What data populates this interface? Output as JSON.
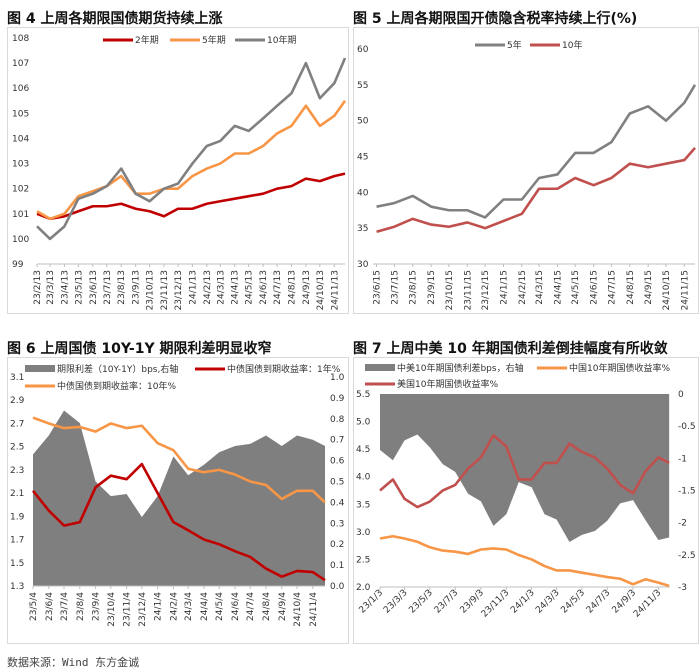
{
  "source": "数据来源：Wind 东方金诚",
  "colors": {
    "red": "#C00000",
    "orange": "#F79646",
    "gray": "#808080",
    "brick": "#C0504D",
    "area": "#7F7F7F"
  },
  "chart_data": [
    {
      "title": "图 4  上周各期限国债期货持续上涨",
      "type": "line",
      "ylim": [
        99,
        108
      ],
      "yticks": [
        99,
        100,
        101,
        102,
        103,
        104,
        105,
        106,
        107,
        108
      ],
      "xticks": [
        "23/2/13",
        "23/3/13",
        "23/4/13",
        "23/5/13",
        "23/6/13",
        "23/7/13",
        "23/8/13",
        "23/9/13",
        "23/10/13",
        "23/11/13",
        "23/12/13",
        "24/1/13",
        "24/2/13",
        "24/3/13",
        "24/4/13",
        "24/5/13",
        "24/6/13",
        "24/7/13",
        "24/8/13",
        "24/9/13",
        "24/10/13",
        "24/11/13"
      ],
      "x": [
        "2023-02-13",
        "2023-03-13",
        "2023-04-13",
        "2023-05-13",
        "2023-06-13",
        "2023-07-13",
        "2023-08-13",
        "2023-09-13",
        "2023-10-13",
        "2023-11-13",
        "2023-12-13",
        "2024-01-13",
        "2024-02-13",
        "2024-03-13",
        "2024-04-13",
        "2024-05-13",
        "2024-06-13",
        "2024-07-13",
        "2024-08-13",
        "2024-09-13",
        "2024-10-13",
        "2024-11-13",
        "2024-12-06"
      ],
      "series": [
        {
          "name": "2年期",
          "color": "#C00000",
          "values": [
            101.0,
            100.8,
            100.9,
            101.1,
            101.3,
            101.3,
            101.4,
            101.2,
            101.1,
            100.9,
            101.2,
            101.2,
            101.4,
            101.5,
            101.6,
            101.7,
            101.8,
            102.0,
            102.1,
            102.4,
            102.3,
            102.5,
            102.6
          ]
        },
        {
          "name": "5年期",
          "color": "#F79646",
          "values": [
            101.1,
            100.8,
            101.0,
            101.7,
            101.9,
            102.1,
            102.5,
            101.8,
            101.8,
            102.0,
            102.0,
            102.5,
            102.8,
            103.0,
            103.4,
            103.4,
            103.7,
            104.2,
            104.5,
            105.3,
            104.5,
            104.9,
            105.5
          ]
        },
        {
          "name": "10年期",
          "color": "#808080",
          "values": [
            100.5,
            100.0,
            100.5,
            101.6,
            101.8,
            102.1,
            102.8,
            101.8,
            101.5,
            102.0,
            102.2,
            103.0,
            103.7,
            103.9,
            104.5,
            104.3,
            104.8,
            105.3,
            105.8,
            107.0,
            105.6,
            106.2,
            107.2
          ]
        }
      ]
    },
    {
      "title": "图 5  上周各期限国开债隐含税率持续上行(%)",
      "type": "line",
      "ylim": [
        30,
        60
      ],
      "yticks": [
        30,
        35,
        40,
        45,
        50,
        55,
        60
      ],
      "xticks": [
        "23/6/15",
        "23/7/15",
        "23/8/15",
        "23/9/15",
        "23/10/15",
        "23/11/15",
        "23/12/15",
        "24/1/15",
        "24/2/15",
        "24/3/15",
        "24/4/15",
        "24/5/15",
        "24/6/15",
        "24/7/15",
        "24/8/15",
        "24/9/15",
        "24/10/15",
        "24/11/15"
      ],
      "x": [
        "2023-06-15",
        "2023-07-15",
        "2023-08-15",
        "2023-09-15",
        "2023-10-15",
        "2023-11-15",
        "2023-12-15",
        "2024-01-15",
        "2024-02-15",
        "2024-03-15",
        "2024-04-15",
        "2024-05-15",
        "2024-06-15",
        "2024-07-15",
        "2024-08-15",
        "2024-09-15",
        "2024-10-15",
        "2024-11-15",
        "2024-12-03"
      ],
      "series": [
        {
          "name": "5年",
          "color": "#808080",
          "values": [
            38,
            38.5,
            39.5,
            38,
            37.5,
            37.5,
            36.5,
            39,
            39,
            42,
            42.5,
            45.5,
            45.5,
            47,
            51,
            52,
            50,
            52.5,
            55
          ]
        },
        {
          "name": "10年",
          "color": "#C0504D",
          "values": [
            34.5,
            35.2,
            36.3,
            35.5,
            35.2,
            35.8,
            35,
            36,
            37,
            40.5,
            40.5,
            42,
            41,
            42,
            44,
            43.5,
            44,
            44.5,
            46.2
          ]
        }
      ]
    },
    {
      "title": "图 6  上周国债 10Y-1Y 期限利差明显收窄",
      "type": "line+area",
      "ylim": [
        1.3,
        3.1
      ],
      "yticks": [
        "1.3",
        "1.5",
        "1.7",
        "1.9",
        "2.1",
        "2.3",
        "2.5",
        "2.7",
        "2.9",
        "3.1"
      ],
      "y2lim": [
        0,
        1
      ],
      "y2ticks": [
        "0.0",
        "0.1",
        "0.2",
        "0.3",
        "0.4",
        "0.5",
        "0.6",
        "0.7",
        "0.8",
        "0.9",
        "1.0"
      ],
      "xticks": [
        "23/5/4",
        "23/6/4",
        "23/7/4",
        "23/8/4",
        "23/9/4",
        "23/10/4",
        "23/11/4",
        "23/12/4",
        "24/1/4",
        "24/2/4",
        "24/3/4",
        "24/4/4",
        "24/5/4",
        "24/6/4",
        "24/7/4",
        "24/8/4",
        "24/9/4",
        "24/10/4",
        "24/11/4"
      ],
      "x": [
        "2023-05-04",
        "2023-06-04",
        "2023-07-04",
        "2023-08-04",
        "2023-09-04",
        "2023-10-04",
        "2023-11-04",
        "2023-12-04",
        "2024-01-04",
        "2024-02-04",
        "2024-03-04",
        "2024-04-04",
        "2024-05-04",
        "2024-06-04",
        "2024-07-04",
        "2024-08-04",
        "2024-09-04",
        "2024-10-04",
        "2024-11-04",
        "2024-11-28"
      ],
      "area": {
        "name": "期限利差（10Y-1Y）bps,右轴",
        "color": "#7F7F7F",
        "axis": "right",
        "values": [
          0.63,
          0.72,
          0.84,
          0.78,
          0.5,
          0.43,
          0.44,
          0.33,
          0.43,
          0.62,
          0.53,
          0.58,
          0.64,
          0.67,
          0.68,
          0.72,
          0.67,
          0.72,
          0.7,
          0.67
        ]
      },
      "series": [
        {
          "name": "中债国债到期收益率：1年%",
          "color": "#C00000",
          "values": [
            2.12,
            1.95,
            1.82,
            1.85,
            2.15,
            2.25,
            2.22,
            2.35,
            2.1,
            1.85,
            1.78,
            1.7,
            1.66,
            1.6,
            1.55,
            1.45,
            1.38,
            1.43,
            1.42,
            1.35
          ]
        },
        {
          "name": "中债国债到期收益率：10年%",
          "color": "#F79646",
          "values": [
            2.75,
            2.7,
            2.66,
            2.67,
            2.63,
            2.7,
            2.66,
            2.68,
            2.53,
            2.47,
            2.31,
            2.28,
            2.3,
            2.26,
            2.2,
            2.17,
            2.05,
            2.12,
            2.12,
            2.02
          ]
        }
      ]
    },
    {
      "title": "图 7  上周中美 10 年期国债利差倒挂幅度有所收敛",
      "type": "line+area",
      "ylim": [
        2.0,
        5.5
      ],
      "yticks": [
        "2.0",
        "2.5",
        "3.0",
        "3.5",
        "4.0",
        "4.5",
        "5.0",
        "5.5"
      ],
      "y2lim": [
        -3,
        0
      ],
      "y2ticks": [
        "-3",
        "-2.5",
        "-2",
        "-1.5",
        "-1",
        "-0.5",
        "0"
      ],
      "xticks": [
        "23/1/3",
        "23/3/3",
        "23/5/3",
        "23/7/3",
        "23/9/3",
        "23/11/3",
        "24/1/3",
        "24/3/3",
        "24/5/3",
        "24/7/3",
        "24/9/3",
        "24/11/3"
      ],
      "x": [
        "2023-01-03",
        "2023-02-03",
        "2023-03-03",
        "2023-04-03",
        "2023-05-03",
        "2023-06-03",
        "2023-07-03",
        "2023-08-03",
        "2023-09-03",
        "2023-10-03",
        "2023-11-03",
        "2023-12-03",
        "2024-01-03",
        "2024-02-03",
        "2024-03-03",
        "2024-04-03",
        "2024-05-03",
        "2024-06-03",
        "2024-07-03",
        "2024-08-03",
        "2024-09-03",
        "2024-10-03",
        "2024-11-03",
        "2024-11-29"
      ],
      "area": {
        "name": "中美10年期国债利差bps，右轴",
        "color": "#7F7F7F",
        "axis": "right",
        "values": [
          -0.87,
          -1.03,
          -0.72,
          -0.63,
          -0.83,
          -1.09,
          -1.21,
          -1.55,
          -1.67,
          -2.05,
          -1.87,
          -1.37,
          -1.45,
          -1.87,
          -1.95,
          -2.3,
          -2.19,
          -2.13,
          -1.97,
          -1.7,
          -1.65,
          -1.96,
          -2.27,
          -2.23
        ]
      },
      "series": [
        {
          "name": "中国10年期国债收益率%",
          "color": "#F79646",
          "values": [
            2.88,
            2.92,
            2.88,
            2.82,
            2.72,
            2.66,
            2.64,
            2.6,
            2.68,
            2.7,
            2.68,
            2.58,
            2.5,
            2.38,
            2.3,
            2.3,
            2.26,
            2.22,
            2.18,
            2.15,
            2.05,
            2.14,
            2.08,
            2.02
          ]
        },
        {
          "name": "美国10年期国债收益率%",
          "color": "#C0504D",
          "values": [
            3.75,
            3.95,
            3.6,
            3.45,
            3.55,
            3.75,
            3.85,
            4.15,
            4.35,
            4.75,
            4.55,
            3.95,
            3.95,
            4.25,
            4.25,
            4.6,
            4.45,
            4.35,
            4.15,
            3.85,
            3.7,
            4.1,
            4.35,
            4.25
          ]
        }
      ]
    }
  ]
}
